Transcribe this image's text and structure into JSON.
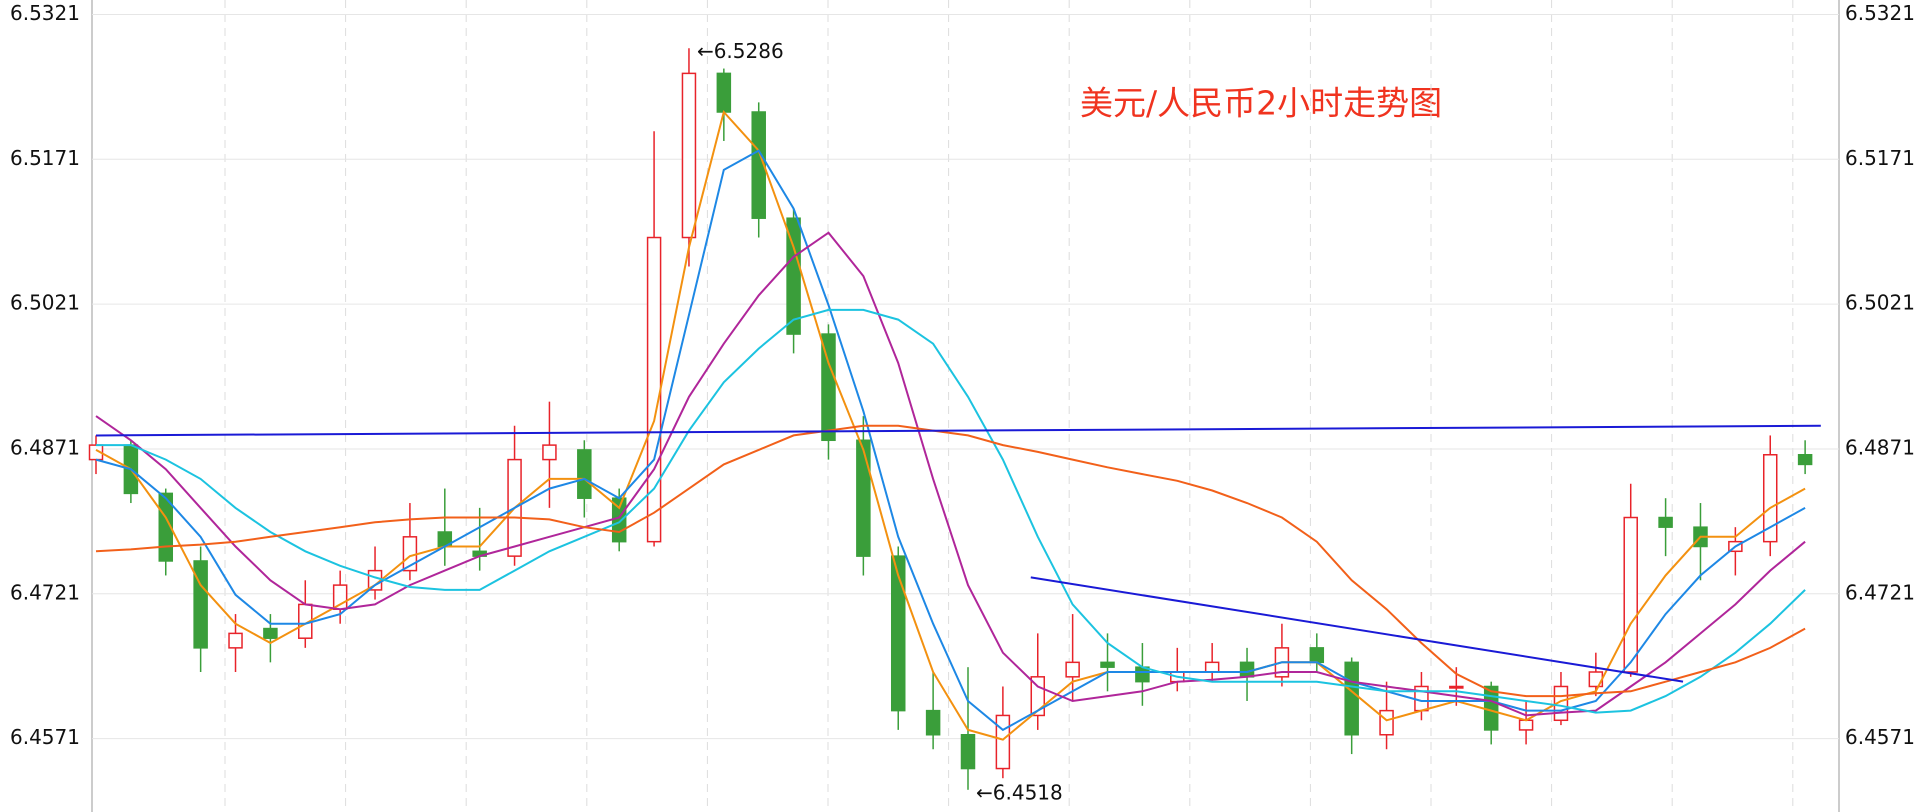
{
  "chart_data": {
    "type": "candlestick",
    "title": "美元/人民币2小时走势图",
    "ylim": [
      6.4495,
      6.5336
    ],
    "yticks": [
      6.4571,
      6.4721,
      6.4871,
      6.5021,
      6.5171,
      6.5321
    ],
    "grid": true,
    "up_color": "#e8232a",
    "down_color": "#3a9e3a",
    "open": [
      6.486,
      6.4875,
      6.4825,
      6.4755,
      6.4665,
      6.4685,
      6.4675,
      6.4705,
      6.4725,
      6.4745,
      6.4785,
      6.4765,
      6.476,
      6.486,
      6.487,
      6.482,
      6.4775,
      6.509,
      6.526,
      6.522,
      6.511,
      6.499,
      6.488,
      6.476,
      6.46,
      6.4575,
      6.454,
      6.4595,
      6.4635,
      6.465,
      6.4645,
      6.463,
      6.464,
      6.465,
      6.4635,
      6.4665,
      6.465,
      6.4575,
      6.46,
      6.4625,
      6.4625,
      6.458,
      6.459,
      6.4625,
      6.464,
      6.48,
      6.479,
      6.4765,
      6.4775,
      6.4865
    ],
    "high": [
      6.4885,
      6.488,
      6.483,
      6.477,
      6.47,
      6.47,
      6.4735,
      6.4745,
      6.477,
      6.4815,
      6.483,
      6.481,
      6.4895,
      6.492,
      6.488,
      6.483,
      6.52,
      6.5286,
      6.5265,
      6.523,
      6.512,
      6.5,
      6.4905,
      6.477,
      6.464,
      6.4645,
      6.4625,
      6.468,
      6.47,
      6.468,
      6.467,
      6.4665,
      6.467,
      6.4665,
      6.469,
      6.468,
      6.4655,
      6.463,
      6.464,
      6.4645,
      6.463,
      6.461,
      6.464,
      6.466,
      6.4835,
      6.482,
      6.4815,
      6.479,
      6.4885,
      6.488
    ],
    "low": [
      6.4845,
      6.4815,
      6.474,
      6.464,
      6.464,
      6.465,
      6.4665,
      6.469,
      6.4715,
      6.4735,
      6.475,
      6.4745,
      6.475,
      6.481,
      6.48,
      6.4765,
      6.477,
      6.506,
      6.519,
      6.509,
      6.497,
      6.486,
      6.474,
      6.458,
      6.456,
      6.4518,
      6.453,
      6.458,
      6.461,
      6.462,
      6.4605,
      6.462,
      6.463,
      6.461,
      6.4625,
      6.464,
      6.4555,
      6.456,
      6.459,
      6.4605,
      6.4565,
      6.4565,
      6.4585,
      6.4615,
      6.4635,
      6.476,
      6.4735,
      6.474,
      6.476,
      6.4845
    ],
    "close": [
      6.4875,
      6.4825,
      6.4755,
      6.4665,
      6.468,
      6.4675,
      6.471,
      6.473,
      6.4745,
      6.478,
      6.477,
      6.476,
      6.486,
      6.4875,
      6.482,
      6.4775,
      6.509,
      6.526,
      6.522,
      6.511,
      6.499,
      6.488,
      6.476,
      6.46,
      6.4575,
      6.454,
      6.4595,
      6.4635,
      6.465,
      6.4645,
      6.463,
      6.464,
      6.465,
      6.4635,
      6.4665,
      6.465,
      6.4575,
      6.46,
      6.4625,
      6.4625,
      6.458,
      6.459,
      6.4625,
      6.464,
      6.48,
      6.479,
      6.477,
      6.4775,
      6.4865,
      6.4855
    ],
    "series": [
      {
        "color": "#f39110",
        "values": [
          6.487,
          6.485,
          6.48,
          6.473,
          6.469,
          6.467,
          6.469,
          6.471,
          6.473,
          6.476,
          6.477,
          6.477,
          6.481,
          6.484,
          6.484,
          6.481,
          6.49,
          6.508,
          6.522,
          6.518,
          6.508,
          6.496,
          6.487,
          6.474,
          6.464,
          6.458,
          6.457,
          6.46,
          6.463,
          6.464,
          6.464,
          6.464,
          6.464,
          6.464,
          6.465,
          6.465,
          6.462,
          6.459,
          6.46,
          6.461,
          6.46,
          6.459,
          6.461,
          6.462,
          6.469,
          6.474,
          6.478,
          6.478,
          6.481,
          6.483
        ]
      },
      {
        "color": "#1e88e5",
        "values": [
          6.486,
          6.485,
          6.482,
          6.478,
          6.472,
          6.469,
          6.469,
          6.47,
          6.473,
          6.475,
          6.477,
          6.479,
          6.481,
          6.483,
          6.484,
          6.482,
          6.486,
          6.501,
          6.516,
          6.518,
          6.512,
          6.502,
          6.491,
          6.478,
          6.469,
          6.461,
          6.458,
          6.46,
          6.462,
          6.464,
          6.464,
          6.464,
          6.464,
          6.464,
          6.465,
          6.465,
          6.463,
          6.462,
          6.461,
          6.461,
          6.461,
          6.46,
          6.46,
          6.461,
          6.465,
          6.47,
          6.474,
          6.477,
          6.479,
          6.481
        ]
      },
      {
        "color": "#b0269a",
        "values": [
          6.4905,
          6.488,
          6.485,
          6.481,
          6.477,
          6.4735,
          6.471,
          6.4705,
          6.471,
          6.473,
          6.4745,
          6.476,
          6.477,
          6.478,
          6.479,
          6.48,
          6.485,
          6.4925,
          6.498,
          6.503,
          6.507,
          6.5095,
          6.505,
          6.496,
          6.484,
          6.473,
          6.466,
          6.4625,
          6.461,
          6.4615,
          6.462,
          6.463,
          6.4632,
          6.4635,
          6.464,
          6.464,
          6.463,
          6.4625,
          6.462,
          6.4615,
          6.461,
          6.4595,
          6.4598,
          6.46,
          6.4625,
          6.465,
          6.468,
          6.471,
          6.4745,
          6.4775
        ]
      },
      {
        "color": "#1cc3e0",
        "values": [
          6.4875,
          6.4875,
          6.486,
          6.484,
          6.481,
          6.4785,
          6.4765,
          6.475,
          6.4738,
          6.4728,
          6.4725,
          6.4725,
          6.4745,
          6.4765,
          6.478,
          6.4795,
          6.483,
          6.489,
          6.494,
          6.4975,
          6.5005,
          6.5015,
          6.5015,
          6.5005,
          6.498,
          6.4925,
          6.486,
          6.478,
          6.471,
          6.467,
          6.4645,
          6.4635,
          6.463,
          6.463,
          6.463,
          6.463,
          6.4625,
          6.462,
          6.462,
          6.462,
          6.4615,
          6.461,
          6.4605,
          6.4598,
          6.46,
          6.4615,
          6.4635,
          6.466,
          6.469,
          6.4725
        ]
      },
      {
        "color": "#f2601a",
        "values": [
          6.4765,
          6.4767,
          6.477,
          6.4772,
          6.4775,
          6.478,
          6.4785,
          6.479,
          6.4795,
          6.4798,
          6.48,
          6.48,
          6.48,
          6.4798,
          6.479,
          6.4785,
          6.4805,
          6.483,
          6.4855,
          6.487,
          6.4885,
          6.489,
          6.4895,
          6.4895,
          6.489,
          6.4885,
          6.4875,
          6.4868,
          6.486,
          6.4852,
          6.4845,
          6.4838,
          6.4828,
          6.4815,
          6.48,
          6.4775,
          6.4735,
          6.4705,
          6.467,
          6.4638,
          6.462,
          6.4615,
          6.4615,
          6.4618,
          6.462,
          6.463,
          6.464,
          6.465,
          6.4665,
          6.4685
        ]
      }
    ],
    "trend_lines": [
      {
        "color": "#1a1ad6",
        "x": [
          0,
          49.45
        ],
        "y": [
          6.4885,
          6.4895
        ]
      },
      {
        "color": "#1a1ad6",
        "x": [
          26.8,
          45.5
        ],
        "y": [
          6.4738,
          6.463
        ]
      }
    ],
    "annotations": [
      {
        "x": 17,
        "value": 6.5286,
        "label": "←6.5286"
      },
      {
        "x": 25,
        "value": 6.4518,
        "label": "←6.4518"
      }
    ]
  }
}
